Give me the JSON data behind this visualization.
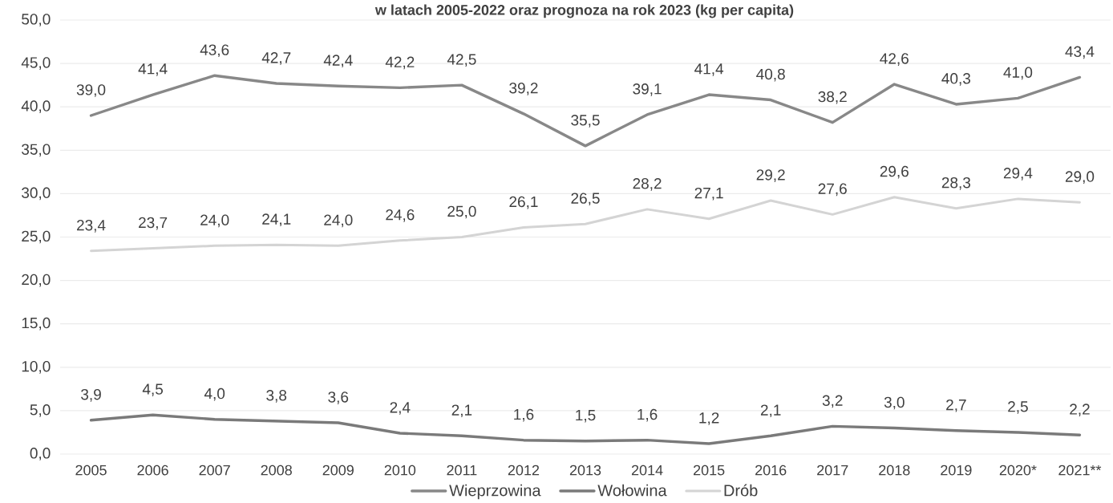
{
  "chart_data": {
    "type": "line",
    "title": "w latach 2005-2022 oraz prognoza na rok 2023 (kg per capita)",
    "categories": [
      "2005",
      "2006",
      "2007",
      "2008",
      "2009",
      "2010",
      "2011",
      "2012",
      "2013",
      "2014",
      "2015",
      "2016",
      "2017",
      "2018",
      "2019",
      "2020*",
      "2021**"
    ],
    "series": [
      {
        "name": "Wieprzowina",
        "color": "#888888",
        "values": [
          39.0,
          41.4,
          43.6,
          42.7,
          42.4,
          42.2,
          42.5,
          39.2,
          35.5,
          39.1,
          41.4,
          40.8,
          38.2,
          42.6,
          40.3,
          41.0,
          43.4
        ],
        "value_labels": [
          "39,0",
          "41,4",
          "43,6",
          "42,7",
          "42,4",
          "42,2",
          "42,5",
          "39,2",
          "35,5",
          "39,1",
          "41,4",
          "40,8",
          "38,2",
          "42,6",
          "40,3",
          "41,0",
          "43,4"
        ]
      },
      {
        "name": "Wołowina",
        "color": "#7a7a7a",
        "values": [
          3.9,
          4.5,
          4.0,
          3.8,
          3.6,
          2.4,
          2.1,
          1.6,
          1.5,
          1.6,
          1.2,
          2.1,
          3.2,
          3.0,
          2.7,
          2.5,
          2.2
        ],
        "value_labels": [
          "3,9",
          "4,5",
          "4,0",
          "3,8",
          "3,6",
          "2,4",
          "2,1",
          "1,6",
          "1,5",
          "1,6",
          "1,2",
          "2,1",
          "3,2",
          "3,0",
          "2,7",
          "2,5",
          "2,2"
        ]
      },
      {
        "name": "Drób",
        "color": "#d4d4d4",
        "values": [
          23.4,
          23.7,
          24.0,
          24.1,
          24.0,
          24.6,
          25.0,
          26.1,
          26.5,
          28.2,
          27.1,
          29.2,
          27.6,
          29.6,
          28.3,
          29.4,
          29.0
        ],
        "value_labels": [
          "23,4",
          "23,7",
          "24,0",
          "24,1",
          "24,0",
          "24,6",
          "25,0",
          "26,1",
          "26,5",
          "28,2",
          "27,1",
          "29,2",
          "27,6",
          "29,6",
          "28,3",
          "29,4",
          "29,0"
        ]
      }
    ],
    "ylim": [
      0,
      50
    ],
    "yticks": [
      {
        "value": 0,
        "label": "0,0"
      },
      {
        "value": 5,
        "label": "5,0"
      },
      {
        "value": 10,
        "label": "10,0"
      },
      {
        "value": 15,
        "label": "15,0"
      },
      {
        "value": 20,
        "label": "20,0"
      },
      {
        "value": 25,
        "label": "25,0"
      },
      {
        "value": 30,
        "label": "30,0"
      },
      {
        "value": 35,
        "label": "35,0"
      },
      {
        "value": 40,
        "label": "40,0"
      },
      {
        "value": 45,
        "label": "45,0"
      },
      {
        "value": 50,
        "label": "50,0"
      }
    ],
    "grid": "y",
    "legend": "bottom"
  }
}
